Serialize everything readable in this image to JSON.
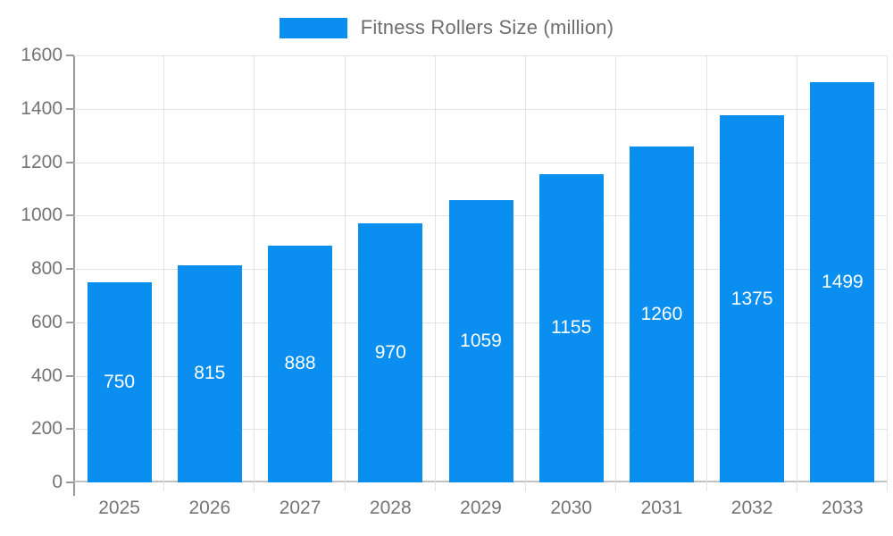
{
  "legend": {
    "label": "Fitness Rollers Size (million)",
    "swatch_color": "#0A8FF0"
  },
  "chart_data": {
    "type": "bar",
    "title": "Fitness Rollers Size (million)",
    "series_name": "Fitness Rollers Size (million)",
    "categories": [
      "2025",
      "2026",
      "2027",
      "2028",
      "2029",
      "2030",
      "2031",
      "2032",
      "2033"
    ],
    "values": [
      750,
      815,
      888,
      970,
      1059,
      1155,
      1260,
      1375,
      1499
    ],
    "value_labels": [
      "750",
      "815",
      "888",
      "970",
      "1059",
      "1155",
      "1260",
      "1375",
      "1499"
    ],
    "xlabel": "",
    "ylabel": "",
    "ylim": [
      0,
      1600
    ],
    "yticks": [
      0,
      200,
      400,
      600,
      800,
      1000,
      1200,
      1400,
      1600
    ],
    "grid": true,
    "legend_position": "top",
    "bar_color": "#0A8FF0",
    "value_label_color": "#ffffff",
    "axis_label_color": "#747474",
    "gridline_color": "#e3e3e3",
    "axis_line_color": "#999999",
    "background_color": "#ffffff"
  }
}
